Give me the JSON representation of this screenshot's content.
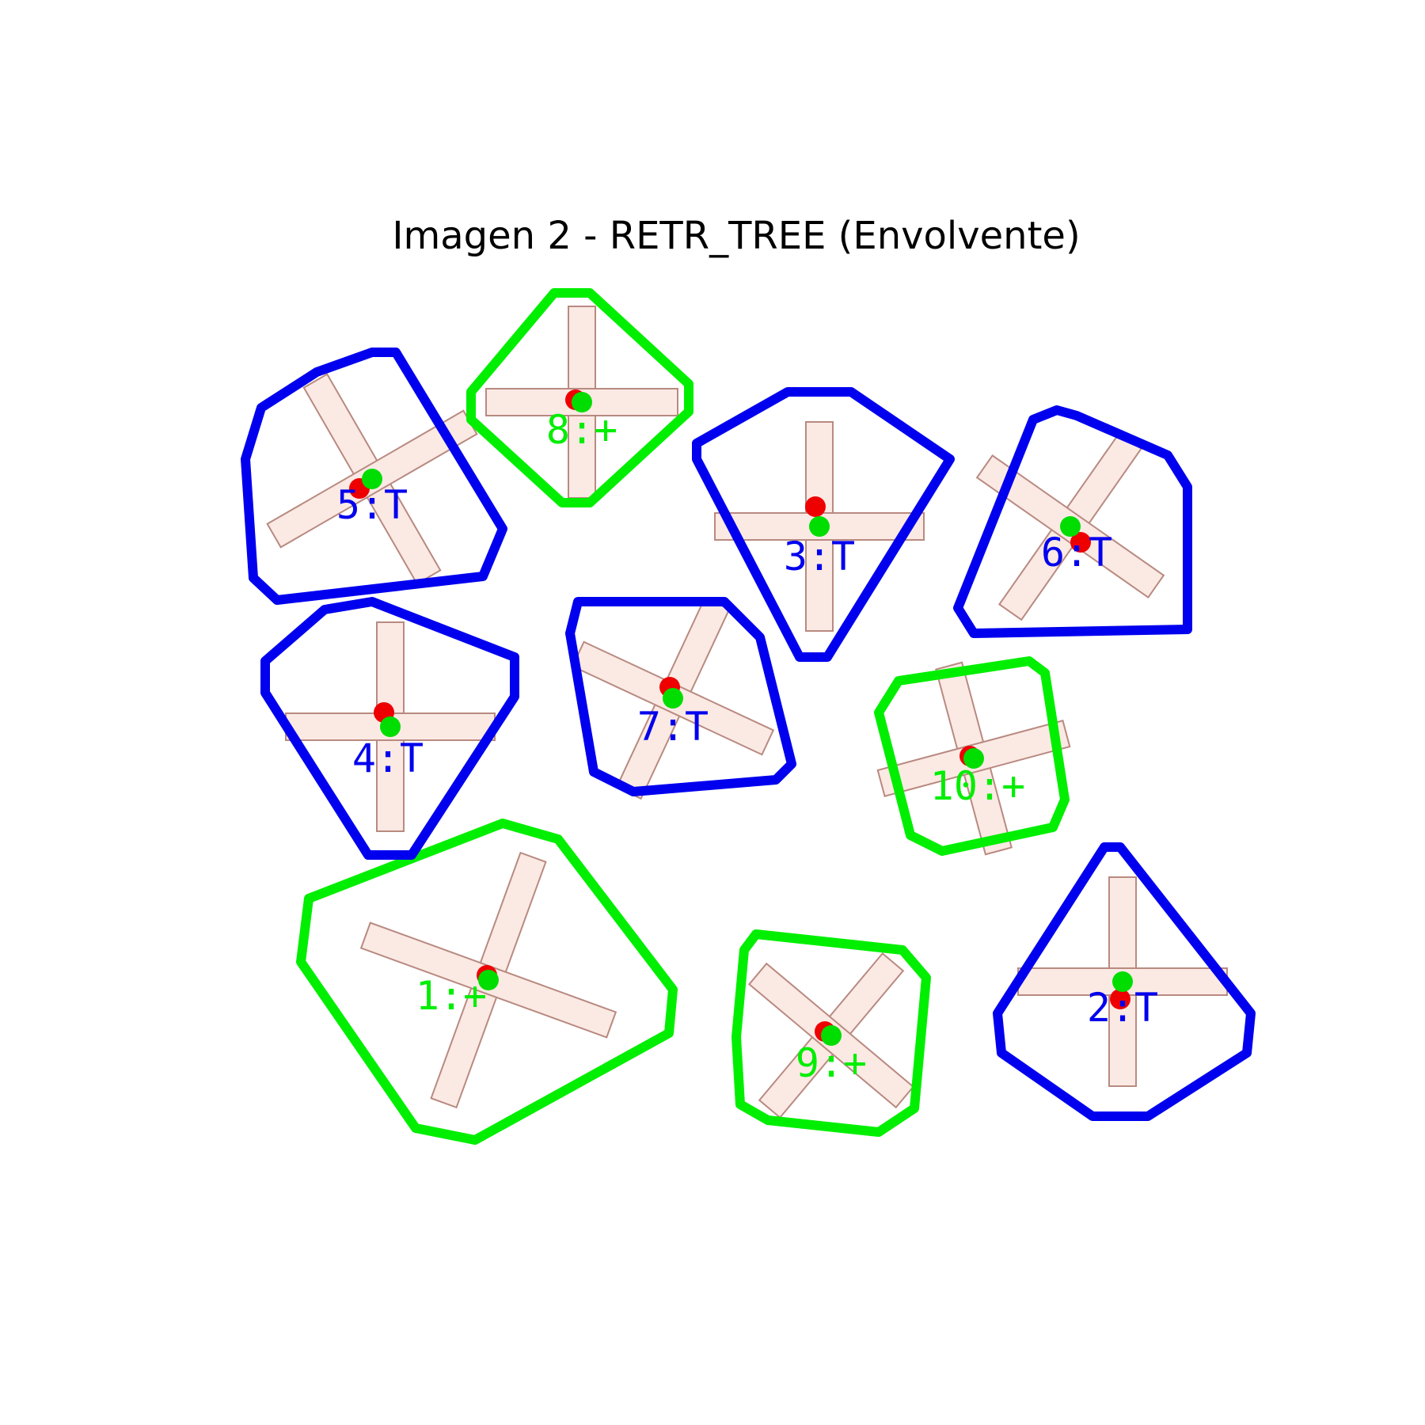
{
  "title": "Imagen 2 - RETR_TREE (Envolvente)",
  "colors": {
    "T": "#0000ee",
    "+": "#00ee00",
    "centroid_red": "#ee0000",
    "centroid_green": "#00dd00",
    "cross_fill": "#fbe9e4",
    "cross_edge": "#b88a80"
  },
  "shapes": [
    {
      "id": 1,
      "label": "1:+",
      "type": "+"
    },
    {
      "id": 2,
      "label": "2:T",
      "type": "T"
    },
    {
      "id": 3,
      "label": "3:T",
      "type": "T"
    },
    {
      "id": 4,
      "label": "4:T",
      "type": "T"
    },
    {
      "id": 5,
      "label": "5:T",
      "type": "T"
    },
    {
      "id": 6,
      "label": "6:T",
      "type": "T"
    },
    {
      "id": 7,
      "label": "7:T",
      "type": "T"
    },
    {
      "id": 8,
      "label": "8:+",
      "type": "+"
    },
    {
      "id": 9,
      "label": "9:+",
      "type": "+"
    },
    {
      "id": 10,
      "label": "10:+",
      "type": "+"
    }
  ]
}
